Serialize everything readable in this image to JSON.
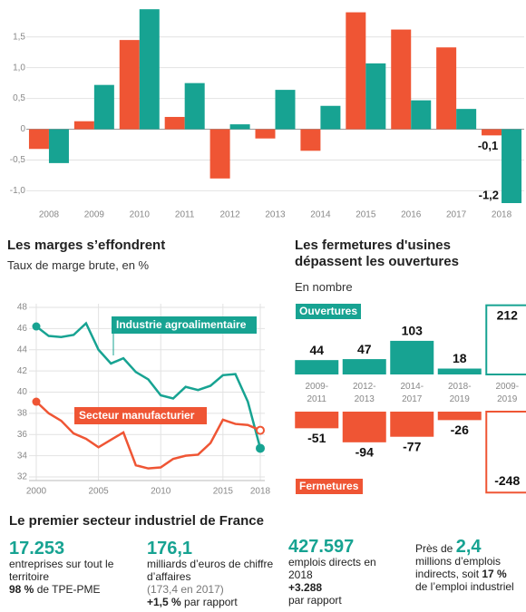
{
  "chart_data": [
    {
      "type": "bar",
      "categories": [
        "2008",
        "2009",
        "2010",
        "2011",
        "2012",
        "2013",
        "2014",
        "2015",
        "2016",
        "2017",
        "2018"
      ],
      "series": [
        {
          "color": "#ef5534",
          "values": [
            -0.32,
            0.13,
            1.45,
            0.2,
            -0.8,
            -0.15,
            -0.35,
            1.9,
            1.62,
            1.33,
            -0.1
          ],
          "value_labels": [
            null,
            null,
            null,
            null,
            null,
            null,
            null,
            null,
            null,
            null,
            "-0,1"
          ]
        },
        {
          "color": "#17a392",
          "values": [
            -0.55,
            0.72,
            1.95,
            0.75,
            0.08,
            0.64,
            0.38,
            1.07,
            0.47,
            0.33,
            -1.2
          ],
          "value_labels": [
            null,
            null,
            null,
            null,
            null,
            null,
            null,
            null,
            null,
            null,
            "-1,2"
          ]
        }
      ],
      "ylim": [
        -1.2,
        2.1
      ],
      "yticks": [
        {
          "value": -1,
          "label": "-1,0"
        },
        {
          "value": -0.5,
          "label": "-0,5"
        },
        0,
        {
          "value": 0.5,
          "label": "0,5"
        },
        {
          "value": 1,
          "label": "1,0"
        },
        {
          "value": 1.5,
          "label": "1,5"
        }
      ],
      "grid": true
    },
    {
      "type": "line",
      "title": "Les marges s’effondrent",
      "subtitle": "Taux de marge brute, en %",
      "x": [
        2000,
        2001,
        2002,
        2003,
        2004,
        2005,
        2006,
        2007,
        2008,
        2009,
        2010,
        2011,
        2012,
        2013,
        2014,
        2015,
        2016,
        2017,
        2018
      ],
      "series": [
        {
          "name": "Industrie agroalimentaire",
          "color": "#17a392",
          "values": [
            46.2,
            45.3,
            45.2,
            45.4,
            46.5,
            44.0,
            42.7,
            43.2,
            41.9,
            41.2,
            39.7,
            39.4,
            40.5,
            40.2,
            40.6,
            41.6,
            41.7,
            39.1,
            34.7
          ]
        },
        {
          "name": "Secteur manufacturier",
          "color": "#ef5534",
          "values": [
            39.1,
            38.0,
            37.3,
            36.1,
            35.6,
            34.8,
            35.5,
            36.2,
            33.1,
            32.8,
            32.9,
            33.7,
            34.0,
            34.1,
            35.2,
            37.4,
            37.0,
            36.9,
            36.4
          ]
        }
      ],
      "xlim": [
        2000,
        2018
      ],
      "xticks": [
        2000,
        2005,
        2010,
        2015,
        2018
      ],
      "ylim": [
        32,
        48
      ],
      "yticks": [
        32,
        34,
        36,
        38,
        40,
        42,
        44,
        46,
        48
      ],
      "grid": true
    },
    {
      "type": "diverging-bar",
      "title": "Les fermetures d'usines dépassent les ouvertures",
      "subtitle": "En nombre",
      "categories": [
        "2009-2011",
        "2012-2013",
        "2014-2017",
        "2018-2019",
        "2009-2019"
      ],
      "series": [
        {
          "name": "Ouvertures",
          "color": "#17a392",
          "values": [
            44,
            47,
            103,
            18,
            212
          ]
        },
        {
          "name": "Fermetures",
          "color": "#ef5534",
          "values": [
            -51,
            -94,
            -77,
            -26,
            -248
          ]
        }
      ]
    }
  ],
  "stats": {
    "title": "Le premier secteur industriel de France",
    "items": [
      {
        "value": "17.253",
        "text": "entreprises sur tout le territoire",
        "highlight": "98 %",
        "after": "de TPE-PME"
      },
      {
        "value": "176,1",
        "text": "milliards d’euros de chiffre d’affaires",
        "note": "(173,4 en 2017)",
        "highlight": "+1,5 %",
        "after": "par rapport"
      },
      {
        "value": "427.597",
        "text": "emplois directs en 2018",
        "highlight": "+3.288",
        "after": "par rapport"
      },
      {
        "prefix": "Près de",
        "value": "2,4",
        "text": "millions d’emplois indirects, soit",
        "highlight": "17 %",
        "after": "de l’emploi industriel"
      }
    ]
  }
}
